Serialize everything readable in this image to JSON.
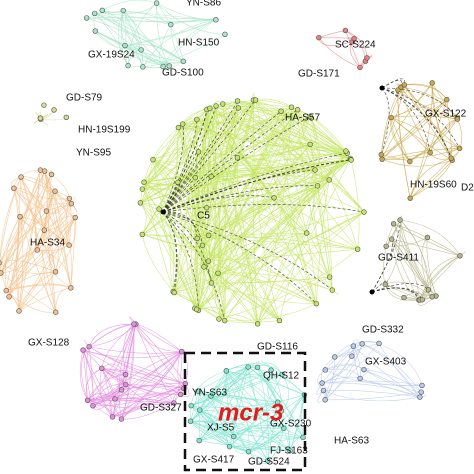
{
  "labels": [
    "YN-S86",
    "HN-S150",
    "GX-19S24",
    "GD-S100",
    "SC-S224",
    "GD-S171",
    "GD-S79",
    "HN-19S199",
    "HA-S57",
    "GX-S122",
    "YN-S95",
    "C5",
    "HN-19S60",
    "D2",
    "HA-S34",
    "GD-S411",
    "GX-S128",
    "GD-S116",
    "GD-S332",
    "GX-S403",
    "YN-S63",
    "QH-S12",
    "GD-S327",
    "GX-S230",
    "XJ-S5",
    "GX-S417",
    "GD-S524",
    "FJ-S163",
    "HA-S63"
  ],
  "highlight": "mcr-3"
}
